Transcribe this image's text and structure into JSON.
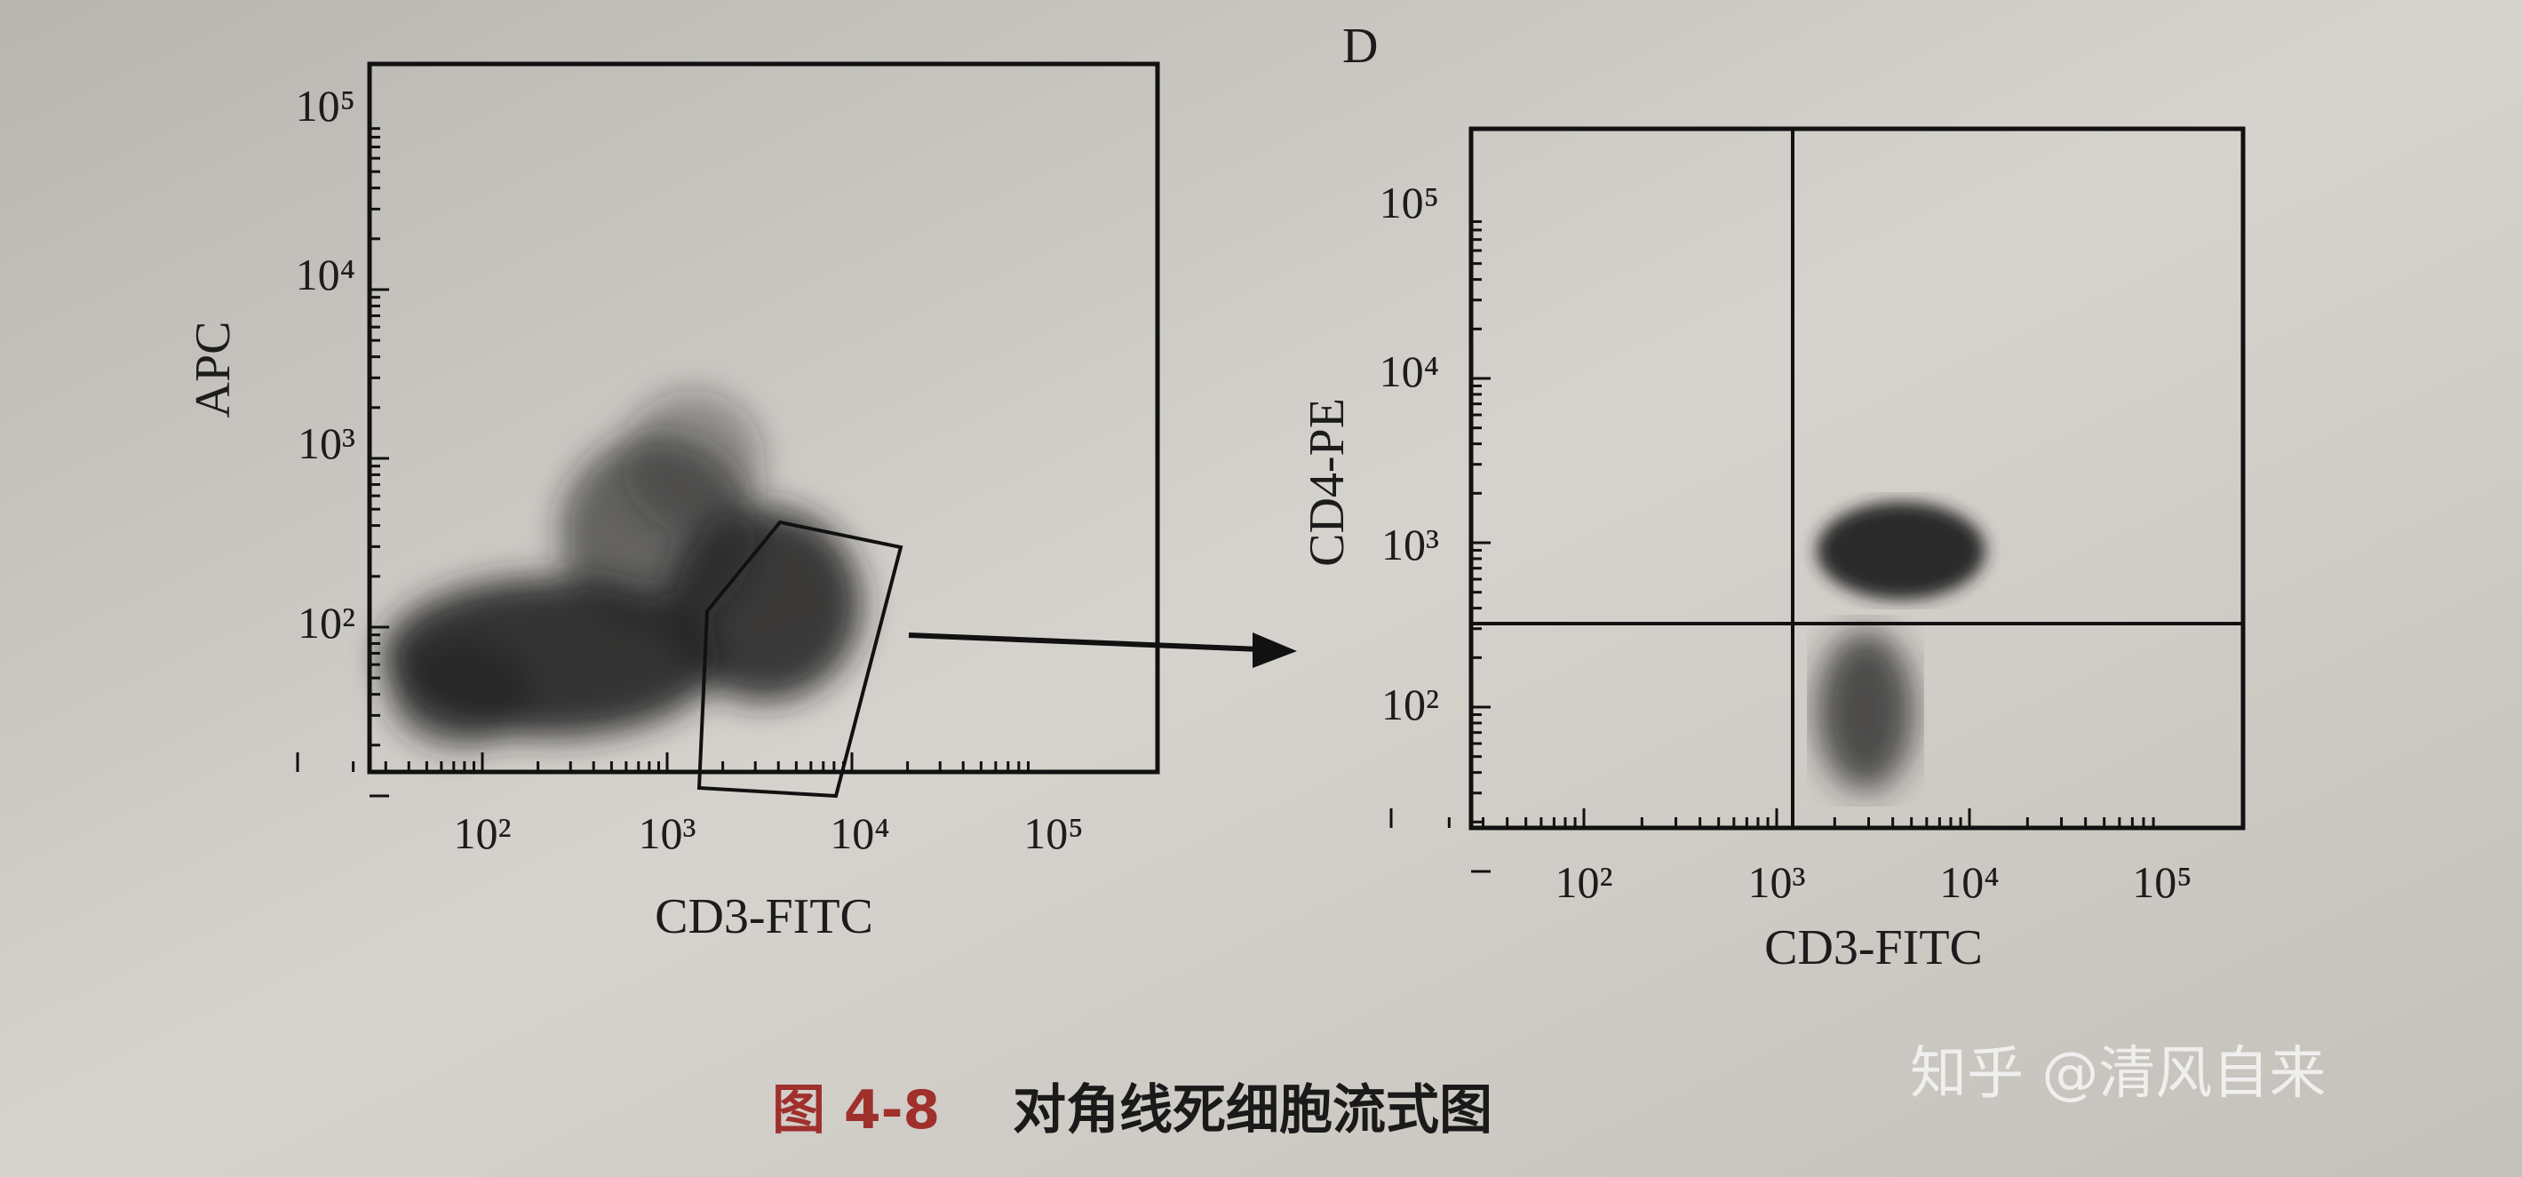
{
  "figures": [
    {
      "y_axis_label": "APC",
      "x_axis_label": "CD3-FITC",
      "y_tick_labels": [
        "10⁵",
        "10⁴",
        "10³",
        "10²"
      ],
      "x_tick_labels": [
        "10²",
        "10³",
        "10⁴",
        "10⁵"
      ]
    },
    {
      "panel_label": "D",
      "y_axis_label": "CD4-PE",
      "x_axis_label": "CD3-FITC",
      "y_tick_labels": [
        "10⁵",
        "10⁴",
        "10³",
        "10²"
      ],
      "x_tick_labels": [
        "10²",
        "10³",
        "10⁴",
        "10⁵"
      ]
    }
  ],
  "caption": {
    "number": "图 4-8",
    "text": "对角线死细胞流式图"
  },
  "watermark": "知乎 @清风自来"
}
